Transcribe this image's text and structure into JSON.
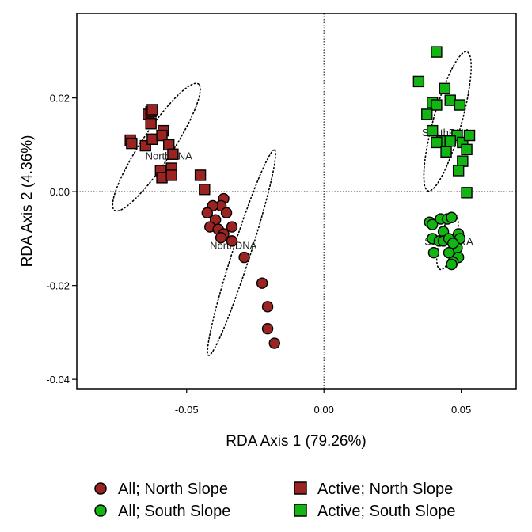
{
  "chart_data": {
    "type": "scatter",
    "xlabel": "RDA Axis 1 (79.26%)",
    "ylabel": "RDA Axis 2 (4.36%)",
    "xlim": [
      -0.09,
      0.07
    ],
    "ylim": [
      -0.042,
      0.038
    ],
    "xticks": [
      -0.05,
      0.0,
      0.05
    ],
    "xtick_labels": [
      "-0.05",
      "0.00",
      "0.05"
    ],
    "yticks": [
      -0.04,
      -0.02,
      0.0,
      0.02
    ],
    "ytick_labels": [
      "-0.04",
      "-0.02",
      "0.00",
      "0.02"
    ],
    "reference_lines": {
      "x": 0.0,
      "y": 0.0,
      "style": "dotted"
    },
    "grid": false,
    "legend_position": "bottom",
    "colors": {
      "north": "#9b2423",
      "south": "#13b513",
      "edge": "#000000"
    },
    "series": [
      {
        "name": "All; North Slope",
        "marker": "circle",
        "color": "#9b2423",
        "points": [
          [
            -0.0365,
            -0.0015
          ],
          [
            -0.0375,
            -0.003
          ],
          [
            -0.0405,
            -0.003
          ],
          [
            -0.0425,
            -0.0045
          ],
          [
            -0.0355,
            -0.0045
          ],
          [
            -0.0395,
            -0.006
          ],
          [
            -0.0335,
            -0.0075
          ],
          [
            -0.0415,
            -0.0075
          ],
          [
            -0.0385,
            -0.008
          ],
          [
            -0.0365,
            -0.009
          ],
          [
            -0.0375,
            -0.0098
          ],
          [
            -0.0335,
            -0.0105
          ],
          [
            -0.029,
            -0.014
          ],
          [
            -0.0225,
            -0.0195
          ],
          [
            -0.0205,
            -0.0245
          ],
          [
            -0.0205,
            -0.0292
          ],
          [
            -0.018,
            -0.0323
          ]
        ]
      },
      {
        "name": "Active; North Slope",
        "marker": "square",
        "color": "#9b2423",
        "points": [
          [
            -0.0705,
            0.011
          ],
          [
            -0.07,
            0.0103
          ],
          [
            -0.065,
            0.0098
          ],
          [
            -0.0625,
            0.0112
          ],
          [
            -0.064,
            0.0165
          ],
          [
            -0.063,
            0.017
          ],
          [
            -0.0625,
            0.0175
          ],
          [
            -0.063,
            0.0145
          ],
          [
            -0.0585,
            0.013
          ],
          [
            -0.059,
            0.012
          ],
          [
            -0.0565,
            0.01
          ],
          [
            -0.055,
            0.008
          ],
          [
            -0.0595,
            0.0045
          ],
          [
            -0.059,
            0.003
          ],
          [
            -0.0555,
            0.005
          ],
          [
            -0.0555,
            0.0035
          ],
          [
            -0.045,
            0.0035
          ],
          [
            -0.0435,
            0.0005
          ]
        ]
      },
      {
        "name": "All; South Slope",
        "marker": "circle",
        "color": "#13b513",
        "points": [
          [
            0.0385,
            -0.0065
          ],
          [
            0.0395,
            -0.007
          ],
          [
            0.0425,
            -0.0058
          ],
          [
            0.045,
            -0.0058
          ],
          [
            0.0465,
            -0.0055
          ],
          [
            0.0435,
            -0.0085
          ],
          [
            0.0395,
            -0.01
          ],
          [
            0.042,
            -0.0105
          ],
          [
            0.0435,
            -0.0105
          ],
          [
            0.0455,
            -0.01
          ],
          [
            0.049,
            -0.009
          ],
          [
            0.0495,
            -0.01
          ],
          [
            0.0485,
            -0.012
          ],
          [
            0.047,
            -0.011
          ],
          [
            0.04,
            -0.013
          ],
          [
            0.0455,
            -0.013
          ],
          [
            0.049,
            -0.014
          ],
          [
            0.047,
            -0.015
          ],
          [
            0.0465,
            -0.0155
          ]
        ]
      },
      {
        "name": "Active; South Slope",
        "marker": "square",
        "color": "#13b513",
        "points": [
          [
            0.041,
            0.0298
          ],
          [
            0.0345,
            0.0235
          ],
          [
            0.044,
            0.022
          ],
          [
            0.0395,
            0.019
          ],
          [
            0.041,
            0.0185
          ],
          [
            0.046,
            0.0195
          ],
          [
            0.0495,
            0.0185
          ],
          [
            0.0375,
            0.0165
          ],
          [
            0.0395,
            0.013
          ],
          [
            0.0485,
            0.012
          ],
          [
            0.0505,
            0.0105
          ],
          [
            0.043,
            0.0108
          ],
          [
            0.041,
            0.0105
          ],
          [
            0.046,
            0.0108
          ],
          [
            0.0445,
            0.0085
          ],
          [
            0.052,
            0.009
          ],
          [
            0.0505,
            0.0065
          ],
          [
            0.049,
            0.0045
          ],
          [
            0.052,
            -0.0002
          ],
          [
            0.053,
            0.012
          ]
        ]
      }
    ],
    "ellipses": [
      {
        "label": "NorthRNA",
        "center": [
          -0.061,
          0.0095
        ],
        "semi_major": 0.0205,
        "semi_minor": 0.0045,
        "angle_deg": -40,
        "label_at": [
          -0.0565,
          0.0075
        ]
      },
      {
        "label": "NorthDNA",
        "center": [
          -0.03,
          -0.013
        ],
        "semi_major": 0.025,
        "semi_minor": 0.003,
        "angle_deg": -61,
        "label_at": [
          -0.033,
          -0.0115
        ]
      },
      {
        "label": "SouthRNA",
        "center": [
          0.045,
          0.015
        ],
        "semi_major": 0.0165,
        "semi_minor": 0.0048,
        "angle_deg": -63,
        "label_at": [
          0.0445,
          0.0125
        ]
      },
      {
        "label": "SouthDNA",
        "center": [
          0.045,
          -0.0107
        ],
        "semi_major": 0.0065,
        "semi_minor": 0.0028,
        "angle_deg": -62,
        "label_at": [
          0.0455,
          -0.0107
        ]
      }
    ]
  },
  "legend": [
    {
      "label": "All; North Slope",
      "marker": "circle",
      "color": "#9b2423"
    },
    {
      "label": "All; South Slope",
      "marker": "circle",
      "color": "#13b513"
    },
    {
      "label": "Active; North Slope",
      "marker": "square",
      "color": "#9b2423"
    },
    {
      "label": "Active; South Slope",
      "marker": "square",
      "color": "#13b513"
    }
  ]
}
